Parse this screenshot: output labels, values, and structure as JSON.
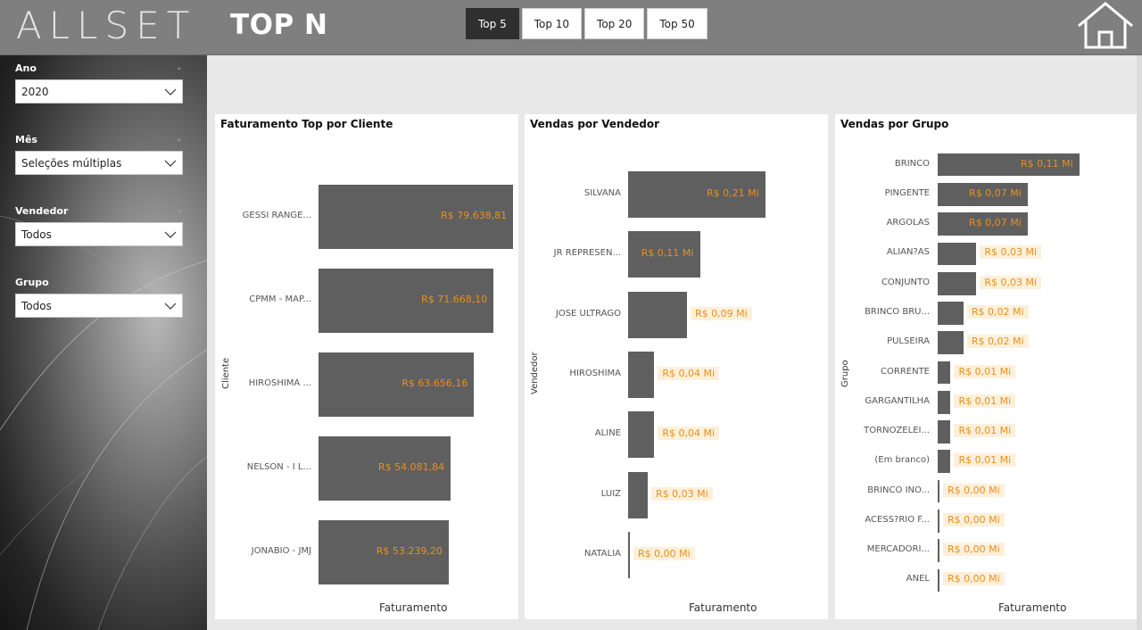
{
  "header": {
    "logo": "ALLSET",
    "title": "TOP N",
    "topn_buttons": [
      "Top 5",
      "Top 10",
      "Top 20",
      "Top 50"
    ],
    "topn_active_index": 0
  },
  "sidebar": {
    "slicers": [
      {
        "label": "Ano",
        "value": "2020"
      },
      {
        "label": "Mês",
        "value": "Seleções múltiplas"
      },
      {
        "label": "Vendedor",
        "value": "Todos"
      },
      {
        "label": "Grupo",
        "value": "Todos"
      }
    ]
  },
  "colors": {
    "bar": "#5f5f5f",
    "data_label": "#e8901e",
    "data_label_bg": "#fdf0da",
    "header_bg": "#7f7f7f"
  },
  "chart_data": [
    {
      "type": "bar",
      "orientation": "horizontal",
      "title": "Faturamento Top por Cliente",
      "xlabel": "Faturamento",
      "ylabel": "Cliente",
      "categories": [
        "GESSI RANGE...",
        "CPMM - MAP...",
        "HIROSHIMA ...",
        "NELSON - I L...",
        "JONABIO - JMJ"
      ],
      "values": [
        79638.81,
        71668.1,
        63656.16,
        54081.84,
        53239.2
      ],
      "data_labels": [
        "R$ 79.638,81",
        "R$ 71.668,10",
        "R$ 63.656,16",
        "R$ 54.081,84",
        "R$ 53.239,20"
      ],
      "xlim": [
        0,
        79638.81
      ]
    },
    {
      "type": "bar",
      "orientation": "horizontal",
      "title": "Vendas por Vendedor",
      "xlabel": "Faturamento",
      "ylabel": "Vendedor",
      "categories": [
        "SILVANA",
        "JR REPRESEN...",
        "JOSE ULTRAGO",
        "HIROSHIMA",
        "ALINE",
        "LUIZ",
        "NATALIA"
      ],
      "values": [
        0.21,
        0.11,
        0.09,
        0.04,
        0.04,
        0.03,
        0.0
      ],
      "data_labels": [
        "R$ 0,21 Mi",
        "R$ 0,11 Mi",
        "R$ 0,09 Mi",
        "R$ 0,04 Mi",
        "R$ 0,04 Mi",
        "R$ 0,03 Mi",
        "R$ 0,00 Mi"
      ],
      "xlim": [
        0,
        0.21
      ]
    },
    {
      "type": "bar",
      "orientation": "horizontal",
      "title": "Vendas por Grupo",
      "xlabel": "Faturamento",
      "ylabel": "Grupo",
      "categories": [
        "BRINCO",
        "PINGENTE",
        "ARGOLAS",
        "ALIAN?AS",
        "CONJUNTO",
        "BRINCO BRU...",
        "PULSEIRA",
        "CORRENTE",
        "GARGANTILHA",
        "TORNOZELEI...",
        "(Em branco)",
        "BRINCO INO...",
        "ACESS?RIO F...",
        "MERCADORI...",
        "ANEL"
      ],
      "values": [
        0.11,
        0.07,
        0.07,
        0.03,
        0.03,
        0.02,
        0.02,
        0.01,
        0.01,
        0.01,
        0.01,
        0.0,
        0.0,
        0.0,
        0.0
      ],
      "data_labels": [
        "R$ 0,11 Mi",
        "R$ 0,07 Mi",
        "R$ 0,07 Mi",
        "R$ 0,03 Mi",
        "R$ 0,03 Mi",
        "R$ 0,02 Mi",
        "R$ 0,02 Mi",
        "R$ 0,01 Mi",
        "R$ 0,01 Mi",
        "R$ 0,01 Mi",
        "R$ 0,01 Mi",
        "R$ 0,00 Mi",
        "R$ 0,00 Mi",
        "R$ 0,00 Mi",
        "R$ 0,00 Mi"
      ],
      "xlim": [
        0,
        0.11
      ]
    }
  ]
}
